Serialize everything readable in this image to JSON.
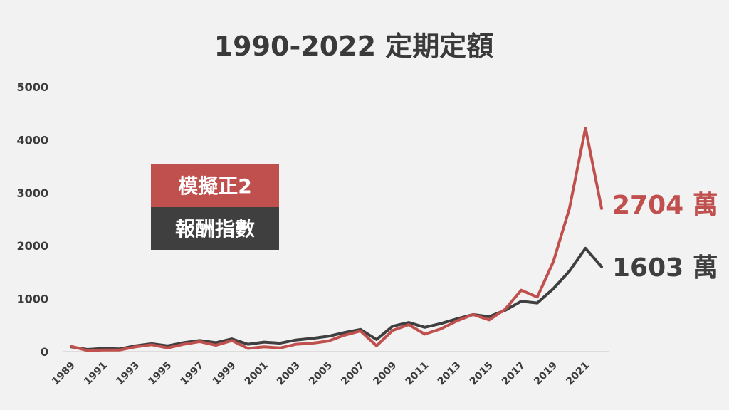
{
  "chart_data": {
    "type": "line",
    "title": "1990-2022 定期定額",
    "xlabel": "",
    "ylabel": "",
    "ylim": [
      0,
      5000
    ],
    "yticks": [
      "0",
      "1000",
      "2000",
      "3000",
      "4000",
      "5000"
    ],
    "x": [
      1989,
      1990,
      1991,
      1992,
      1993,
      1994,
      1995,
      1996,
      1997,
      1998,
      1999,
      2000,
      2001,
      2002,
      2003,
      2004,
      2005,
      2006,
      2007,
      2008,
      2009,
      2010,
      2011,
      2012,
      2013,
      2014,
      2015,
      2016,
      2017,
      2018,
      2019,
      2020,
      2021,
      2022
    ],
    "xticks": [
      "1989",
      "1991",
      "1993",
      "1995",
      "1997",
      "1999",
      "2001",
      "2003",
      "2005",
      "2007",
      "2009",
      "2011",
      "2013",
      "2015",
      "2017",
      "2019",
      "2021"
    ],
    "grid": false,
    "legend_position": "center-left",
    "series": [
      {
        "name": "模擬正2",
        "color": "#c0504d",
        "end_label": "2704 萬",
        "values": [
          100,
          20,
          30,
          30,
          90,
          130,
          70,
          140,
          190,
          120,
          210,
          60,
          90,
          70,
          140,
          160,
          200,
          310,
          390,
          110,
          400,
          510,
          330,
          430,
          580,
          700,
          600,
          800,
          1160,
          1030,
          1700,
          2700,
          4220,
          2704
        ]
      },
      {
        "name": "報酬指數",
        "color": "#3f3f3f",
        "end_label": "1603 萬",
        "values": [
          90,
          40,
          60,
          50,
          110,
          150,
          110,
          170,
          210,
          170,
          240,
          140,
          180,
          160,
          220,
          250,
          290,
          360,
          420,
          230,
          480,
          550,
          460,
          530,
          620,
          700,
          660,
          780,
          950,
          920,
          1190,
          1520,
          1950,
          1603
        ]
      }
    ]
  }
}
